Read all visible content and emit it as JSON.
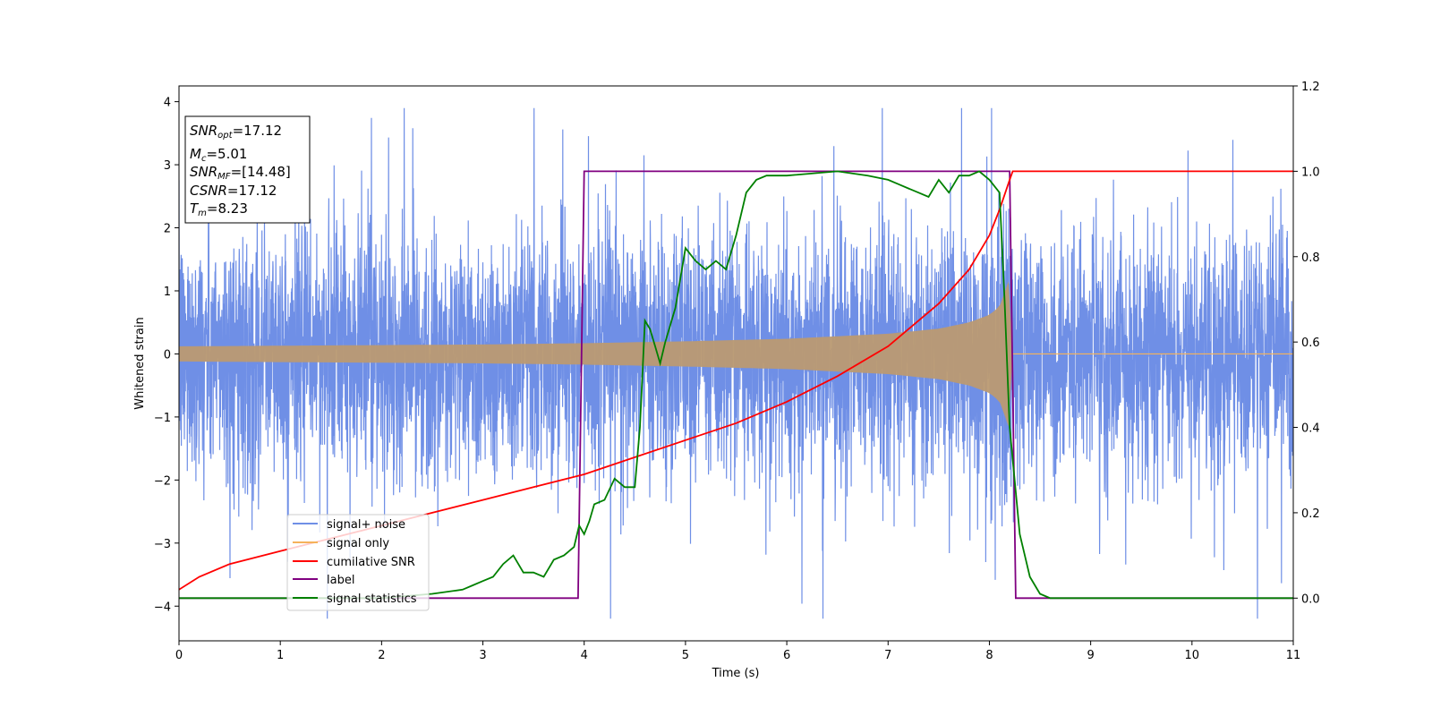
{
  "chart_data": {
    "type": "line",
    "xlabel": "Time (s)",
    "ylabel": "Whitened strain",
    "xlim": [
      0,
      11
    ],
    "ylim_left": [
      -4.55,
      4.25
    ],
    "ylim_right": [
      -0.1,
      1.2
    ],
    "xticks": [
      "0",
      "1",
      "2",
      "3",
      "4",
      "5",
      "6",
      "7",
      "8",
      "9",
      "10",
      "11"
    ],
    "yticks_left": [
      "4",
      "3",
      "2",
      "1",
      "0",
      "−1",
      "−2",
      "−3",
      "−4"
    ],
    "yticks_right": [
      "1.2",
      "1.0",
      "0.8",
      "0.6",
      "0.4",
      "0.2",
      "0.0"
    ],
    "info_box": {
      "snr_opt": {
        "symbol": "SNR",
        "sub": "opt",
        "value": "=17.12"
      },
      "mc": {
        "symbol": "M",
        "sub": "c",
        "value": "=5.01"
      },
      "snr_mf": {
        "symbol": "SNR",
        "sub": "MF",
        "value": "=[14.48]"
      },
      "csnr": {
        "symbol": "CSNR",
        "value": "=17.12"
      },
      "tm": {
        "symbol": "T",
        "sub": "m",
        "value": "=8.23"
      }
    },
    "legend": {
      "placement": "lower-left",
      "entries": [
        "signal+ noise",
        "signal only",
        "cumilative SNR",
        "label",
        "signal statistics"
      ]
    },
    "colors": {
      "signal_noise": "#6f8fe6",
      "signal_only": "#f5b25a",
      "overlap": "#bb9a72",
      "cumulative_snr": "#ff0000",
      "label": "#800080",
      "signal_statistics": "#008000"
    },
    "series": [
      {
        "name": "signal+ noise",
        "axis": "left",
        "description_values": {
          "noise_std": 1.0,
          "spike_max": 3.9,
          "spike_min": -4.2,
          "x_range": [
            0,
            11
          ]
        }
      },
      {
        "name": "signal only",
        "axis": "left",
        "x": [
          0,
          1,
          2,
          3,
          4,
          5,
          6,
          7,
          7.5,
          7.8,
          8.0,
          8.1,
          8.2,
          8.23
        ],
        "envelope": [
          0.12,
          0.13,
          0.14,
          0.15,
          0.17,
          0.2,
          0.24,
          0.32,
          0.4,
          0.5,
          0.62,
          0.75,
          1.2,
          0.0
        ]
      },
      {
        "name": "cumilative SNR",
        "axis": "right",
        "x": [
          0,
          0.2,
          0.5,
          1,
          1.5,
          2,
          2.5,
          3,
          3.5,
          4,
          4.5,
          5,
          5.5,
          6,
          6.5,
          7,
          7.5,
          7.8,
          8.0,
          8.1,
          8.2,
          8.23,
          11
        ],
        "y": [
          0.02,
          0.05,
          0.08,
          0.11,
          0.14,
          0.17,
          0.2,
          0.23,
          0.26,
          0.29,
          0.33,
          0.37,
          0.41,
          0.46,
          0.52,
          0.59,
          0.69,
          0.77,
          0.85,
          0.91,
          0.98,
          1.0,
          1.0
        ]
      },
      {
        "name": "label",
        "axis": "right",
        "x": [
          0,
          3.94,
          4.0,
          8.2,
          8.26,
          11
        ],
        "y": [
          0,
          0,
          1,
          1,
          0,
          0
        ]
      },
      {
        "name": "signal statistics",
        "axis": "right",
        "x": [
          0,
          1,
          2,
          2.5,
          2.8,
          2.9,
          3.0,
          3.1,
          3.2,
          3.3,
          3.4,
          3.5,
          3.6,
          3.7,
          3.8,
          3.9,
          3.95,
          4.0,
          4.05,
          4.1,
          4.2,
          4.3,
          4.4,
          4.5,
          4.55,
          4.6,
          4.65,
          4.7,
          4.75,
          4.8,
          4.9,
          5.0,
          5.1,
          5.2,
          5.3,
          5.4,
          5.5,
          5.6,
          5.7,
          5.8,
          6.0,
          6.5,
          6.8,
          7.0,
          7.1,
          7.2,
          7.3,
          7.4,
          7.5,
          7.6,
          7.7,
          7.8,
          7.9,
          8.0,
          8.1,
          8.15,
          8.2,
          8.3,
          8.4,
          8.5,
          8.6,
          9,
          11
        ],
        "y": [
          0,
          0,
          0,
          0.01,
          0.02,
          0.03,
          0.04,
          0.05,
          0.08,
          0.1,
          0.06,
          0.06,
          0.05,
          0.09,
          0.1,
          0.12,
          0.17,
          0.15,
          0.18,
          0.22,
          0.23,
          0.28,
          0.26,
          0.26,
          0.4,
          0.65,
          0.63,
          0.59,
          0.55,
          0.6,
          0.68,
          0.82,
          0.79,
          0.77,
          0.79,
          0.77,
          0.85,
          0.95,
          0.98,
          0.99,
          0.99,
          1.0,
          0.99,
          0.98,
          0.97,
          0.96,
          0.95,
          0.94,
          0.98,
          0.95,
          0.99,
          0.99,
          1.0,
          0.98,
          0.95,
          0.7,
          0.4,
          0.15,
          0.05,
          0.01,
          0.0,
          0.0,
          0.0
        ]
      }
    ]
  }
}
